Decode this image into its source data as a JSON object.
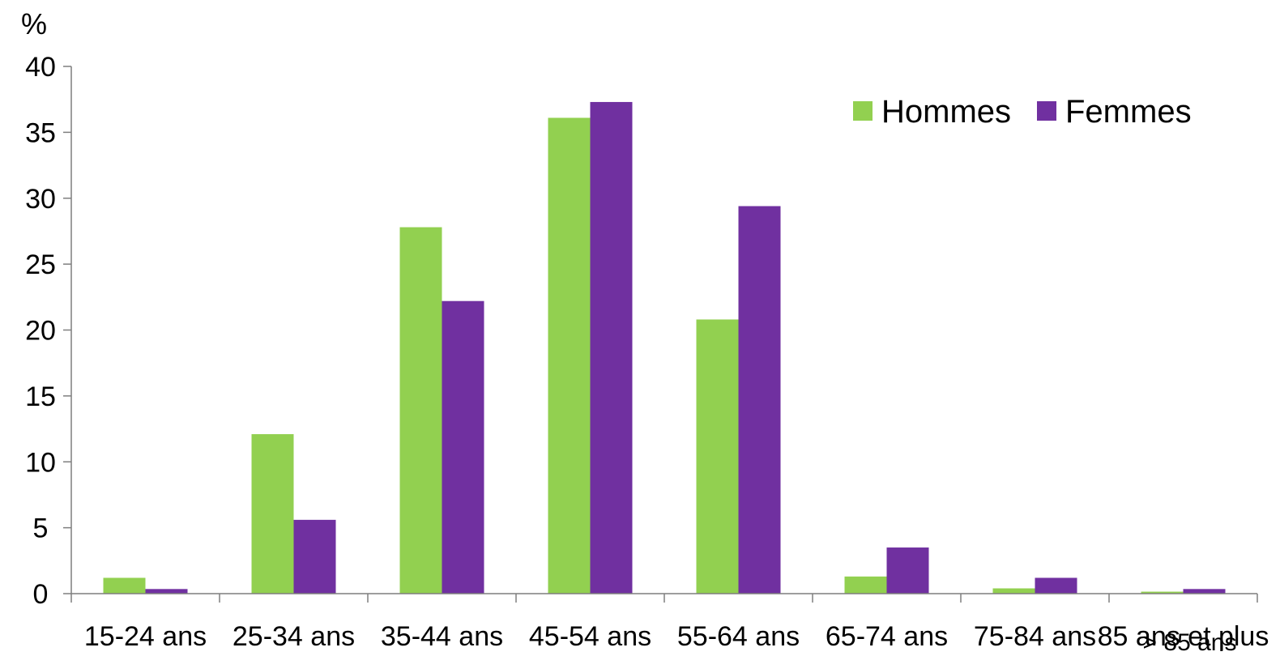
{
  "colors": {
    "hommes": "#92d050",
    "femmes": "#7030a0",
    "axis": "#7f7f7f"
  },
  "chart_data": {
    "type": "bar",
    "ylabel": "%",
    "ylim": [
      0,
      40
    ],
    "yticks": [
      0,
      5,
      10,
      15,
      20,
      25,
      30,
      35,
      40
    ],
    "categories": [
      "15-24 ans",
      "25-34 ans",
      "35-44 ans",
      "45-54 ans",
      "55-64 ans",
      "65-74 ans",
      "75-84 ans",
      "85 ans et plus"
    ],
    "overlap_label": "> 85 ans",
    "legend_position": "top-right",
    "grid": false,
    "series": [
      {
        "name": "Hommes",
        "color": "#92d050",
        "values": [
          1.2,
          12.1,
          27.8,
          36.1,
          20.8,
          1.3,
          0.4,
          0.15
        ]
      },
      {
        "name": "Femmes",
        "color": "#7030a0",
        "values": [
          0.35,
          5.6,
          22.2,
          37.3,
          29.4,
          3.5,
          1.2,
          0.35
        ]
      }
    ]
  }
}
